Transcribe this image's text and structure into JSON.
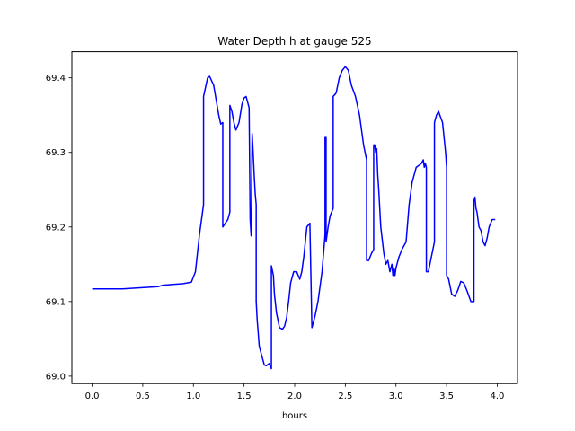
{
  "chart_data": {
    "type": "line",
    "title": "Water Depth h at gauge 525",
    "xlabel": "hours",
    "ylabel": "",
    "xlim": [
      -0.2,
      4.2
    ],
    "ylim": [
      68.99,
      69.435
    ],
    "xticks": [
      0.0,
      0.5,
      1.0,
      1.5,
      2.0,
      2.5,
      3.0,
      3.5,
      4.0
    ],
    "xtick_labels": [
      "0.0",
      "0.5",
      "1.0",
      "1.5",
      "2.0",
      "2.5",
      "3.0",
      "3.5",
      "4.0"
    ],
    "yticks": [
      69.0,
      69.1,
      69.2,
      69.3,
      69.4
    ],
    "ytick_labels": [
      "69.0",
      "69.1",
      "69.2",
      "69.3",
      "69.4"
    ],
    "grid": false,
    "legend": "none",
    "series": [
      {
        "color": "#0000ff",
        "x": [
          0.0,
          0.3,
          0.65,
          0.7,
          0.9,
          0.98,
          1.02,
          1.06,
          1.1,
          1.1,
          1.14,
          1.16,
          1.2,
          1.25,
          1.27,
          1.29,
          1.29,
          1.34,
          1.36,
          1.36,
          1.38,
          1.4,
          1.42,
          1.45,
          1.48,
          1.5,
          1.52,
          1.55,
          1.56,
          1.57,
          1.58,
          1.59,
          1.59,
          1.6,
          1.61,
          1.62,
          1.62,
          1.63,
          1.65,
          1.7,
          1.72,
          1.75,
          1.77,
          1.77,
          1.79,
          1.8,
          1.82,
          1.85,
          1.88,
          1.9,
          1.92,
          1.94,
          1.96,
          1.99,
          2.02,
          2.05,
          2.07,
          2.09,
          2.12,
          2.15,
          2.17,
          2.17,
          2.2,
          2.23,
          2.27,
          2.3,
          2.3,
          2.31,
          2.31,
          2.33,
          2.35,
          2.38,
          2.38,
          2.4,
          2.41,
          2.44,
          2.47,
          2.5,
          2.53,
          2.56,
          2.6,
          2.64,
          2.68,
          2.71,
          2.71,
          2.73,
          2.76,
          2.78,
          2.78,
          2.79,
          2.8,
          2.81,
          2.82,
          2.83,
          2.85,
          2.88,
          2.9,
          2.92,
          2.94,
          2.96,
          2.97,
          2.98,
          2.99,
          3.0,
          3.01,
          3.03,
          3.06,
          3.1,
          3.13,
          3.16,
          3.2,
          3.25,
          3.27,
          3.28,
          3.29,
          3.3,
          3.3,
          3.32,
          3.35,
          3.38,
          3.38,
          3.4,
          3.42,
          3.46,
          3.49,
          3.5,
          3.5,
          3.52,
          3.55,
          3.58,
          3.61,
          3.64,
          3.67,
          3.7,
          3.74,
          3.77,
          3.77,
          3.78,
          3.79,
          3.8,
          3.82,
          3.84,
          3.86,
          3.88,
          3.9,
          3.92,
          3.95,
          3.98
        ],
        "y": [
          69.117,
          69.117,
          69.12,
          69.122,
          69.124,
          69.126,
          69.14,
          69.19,
          69.23,
          69.375,
          69.4,
          69.402,
          69.39,
          69.35,
          69.338,
          69.34,
          69.2,
          69.21,
          69.22,
          69.363,
          69.355,
          69.34,
          69.33,
          69.34,
          69.365,
          69.373,
          69.375,
          69.36,
          69.21,
          69.188,
          69.325,
          69.3,
          69.3,
          69.27,
          69.245,
          69.23,
          69.1,
          69.075,
          69.04,
          69.015,
          69.014,
          69.017,
          69.01,
          69.148,
          69.135,
          69.11,
          69.085,
          69.065,
          69.063,
          69.067,
          69.078,
          69.1,
          69.125,
          69.14,
          69.14,
          69.13,
          69.14,
          69.16,
          69.2,
          69.205,
          69.065,
          69.065,
          69.08,
          69.1,
          69.14,
          69.19,
          69.32,
          69.32,
          69.18,
          69.2,
          69.215,
          69.225,
          69.375,
          69.378,
          69.38,
          69.4,
          69.41,
          69.415,
          69.41,
          69.39,
          69.375,
          69.35,
          69.31,
          69.29,
          69.155,
          69.155,
          69.165,
          69.17,
          69.31,
          69.31,
          69.3,
          69.305,
          69.27,
          69.25,
          69.2,
          69.165,
          69.15,
          69.155,
          69.14,
          69.15,
          69.135,
          69.145,
          69.135,
          69.145,
          69.15,
          69.16,
          69.17,
          69.18,
          69.23,
          69.26,
          69.28,
          69.285,
          69.29,
          69.28,
          69.285,
          69.28,
          69.14,
          69.14,
          69.16,
          69.18,
          69.34,
          69.35,
          69.355,
          69.34,
          69.3,
          69.28,
          69.135,
          69.13,
          69.11,
          69.107,
          69.115,
          69.127,
          69.125,
          69.115,
          69.1,
          69.1,
          69.235,
          69.24,
          69.225,
          69.22,
          69.2,
          69.195,
          69.18,
          69.175,
          69.185,
          69.2,
          69.21,
          69.21
        ]
      }
    ]
  }
}
